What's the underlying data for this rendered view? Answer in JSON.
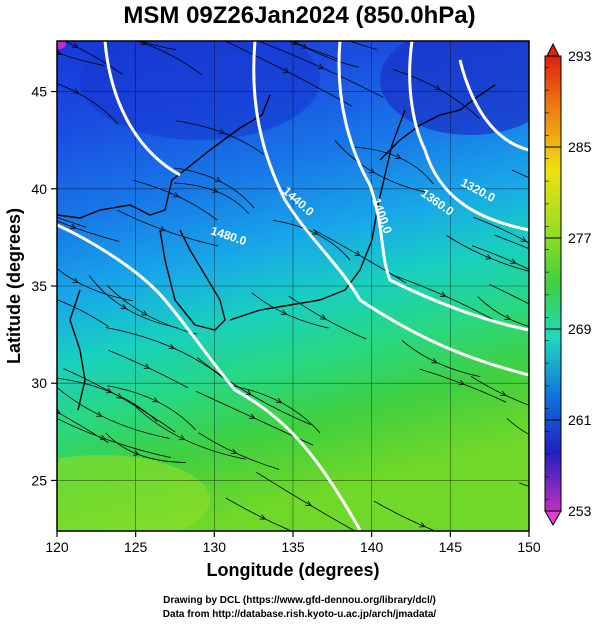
{
  "title": "MSM 09Z26Jan2024 (850.0hPa)",
  "xaxis": {
    "label": "Longitude (degrees)",
    "range": [
      120,
      150
    ],
    "ticks": [
      "120",
      "125",
      "130",
      "135",
      "140",
      "145",
      "150"
    ]
  },
  "yaxis": {
    "label": "Latitude  (degrees)",
    "range": [
      22.4,
      47.6
    ],
    "ticks": [
      "25",
      "30",
      "35",
      "40",
      "45"
    ]
  },
  "colorbar": {
    "range": [
      253,
      293
    ],
    "labels": [
      "293",
      "285",
      "277",
      "269",
      "261",
      "253"
    ],
    "colors": [
      "#c030c0",
      "#2020c0",
      "#1060e0",
      "#10b8e0",
      "#20d890",
      "#40d040",
      "#a0e020",
      "#f0e010",
      "#f08010",
      "#e02010"
    ]
  },
  "contours": [
    {
      "label": "1480.0"
    },
    {
      "label": "1440.0"
    },
    {
      "label": "1400.0"
    },
    {
      "label": "1360.0"
    },
    {
      "label": "1320.0"
    }
  ],
  "credits": {
    "line1": "Drawing by DCL (https://www.gfd-dennou.org/library/dcl/)",
    "line2": "Data from http://database.rish.kyoto-u.ac.jp/arch/jmadata/"
  }
}
